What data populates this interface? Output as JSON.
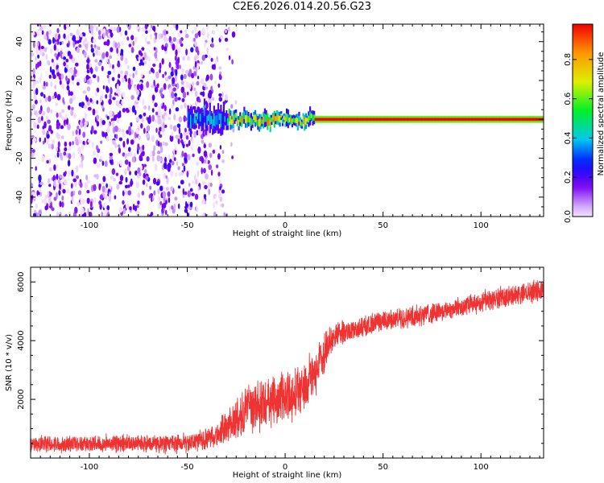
{
  "title": "C2E6.2026.014.20.56.G23",
  "chart_data": [
    {
      "type": "heatmap",
      "xlabel": "Height of straight line (km)",
      "ylabel": "Frequency (Hz)",
      "xlim": [
        -130,
        132
      ],
      "ylim": [
        -50,
        49
      ],
      "xticks": [
        -100,
        -50,
        0,
        50,
        100
      ],
      "yticks": [
        -40,
        -20,
        0,
        20,
        40
      ],
      "colorbar": {
        "label": "Normalized spectral amplitude",
        "range": [
          0,
          0.98
        ],
        "ticks": [
          0.0,
          0.2,
          0.4,
          0.6,
          0.8
        ],
        "tick_labels": [
          "0.0",
          "0.2",
          "0.4",
          "0.6",
          "0.8"
        ]
      },
      "features": [
        {
          "name": "noise-region",
          "x_range": [
            -130,
            -25
          ],
          "freq_range": [
            -50,
            49
          ],
          "amplitude_range": [
            0.0,
            0.25
          ]
        },
        {
          "name": "carrier-line",
          "x_range": [
            -50,
            132
          ],
          "frequency": 0,
          "amplitude_range": [
            0.2,
            0.98
          ]
        }
      ]
    },
    {
      "type": "line",
      "xlabel": "Height of straight line (km)",
      "ylabel": "SNR (10 * v/v)",
      "xlim": [
        -130,
        132
      ],
      "ylim": [
        0,
        6500
      ],
      "xticks": [
        -100,
        -50,
        0,
        50,
        100
      ],
      "yticks": [
        2000,
        4000,
        6000
      ],
      "series": [
        {
          "name": "SNR",
          "color": "#ee3333",
          "trend_x": [
            -130,
            -110,
            -80,
            -60,
            -45,
            -35,
            -28,
            -22,
            -15,
            -8,
            0,
            8,
            15,
            20,
            25,
            35,
            50,
            70,
            90,
            110,
            132
          ],
          "trend_y": [
            450,
            500,
            500,
            480,
            550,
            800,
            1150,
            1500,
            1750,
            1950,
            2100,
            2350,
            2800,
            3600,
            4200,
            4350,
            4650,
            4900,
            5150,
            5450,
            5750
          ],
          "noise_amplitude": [
            300,
            300,
            300,
            300,
            350,
            450,
            650,
            850,
            900,
            900,
            900,
            900,
            900,
            700,
            450,
            380,
            380,
            380,
            380,
            380,
            380
          ]
        }
      ]
    }
  ]
}
